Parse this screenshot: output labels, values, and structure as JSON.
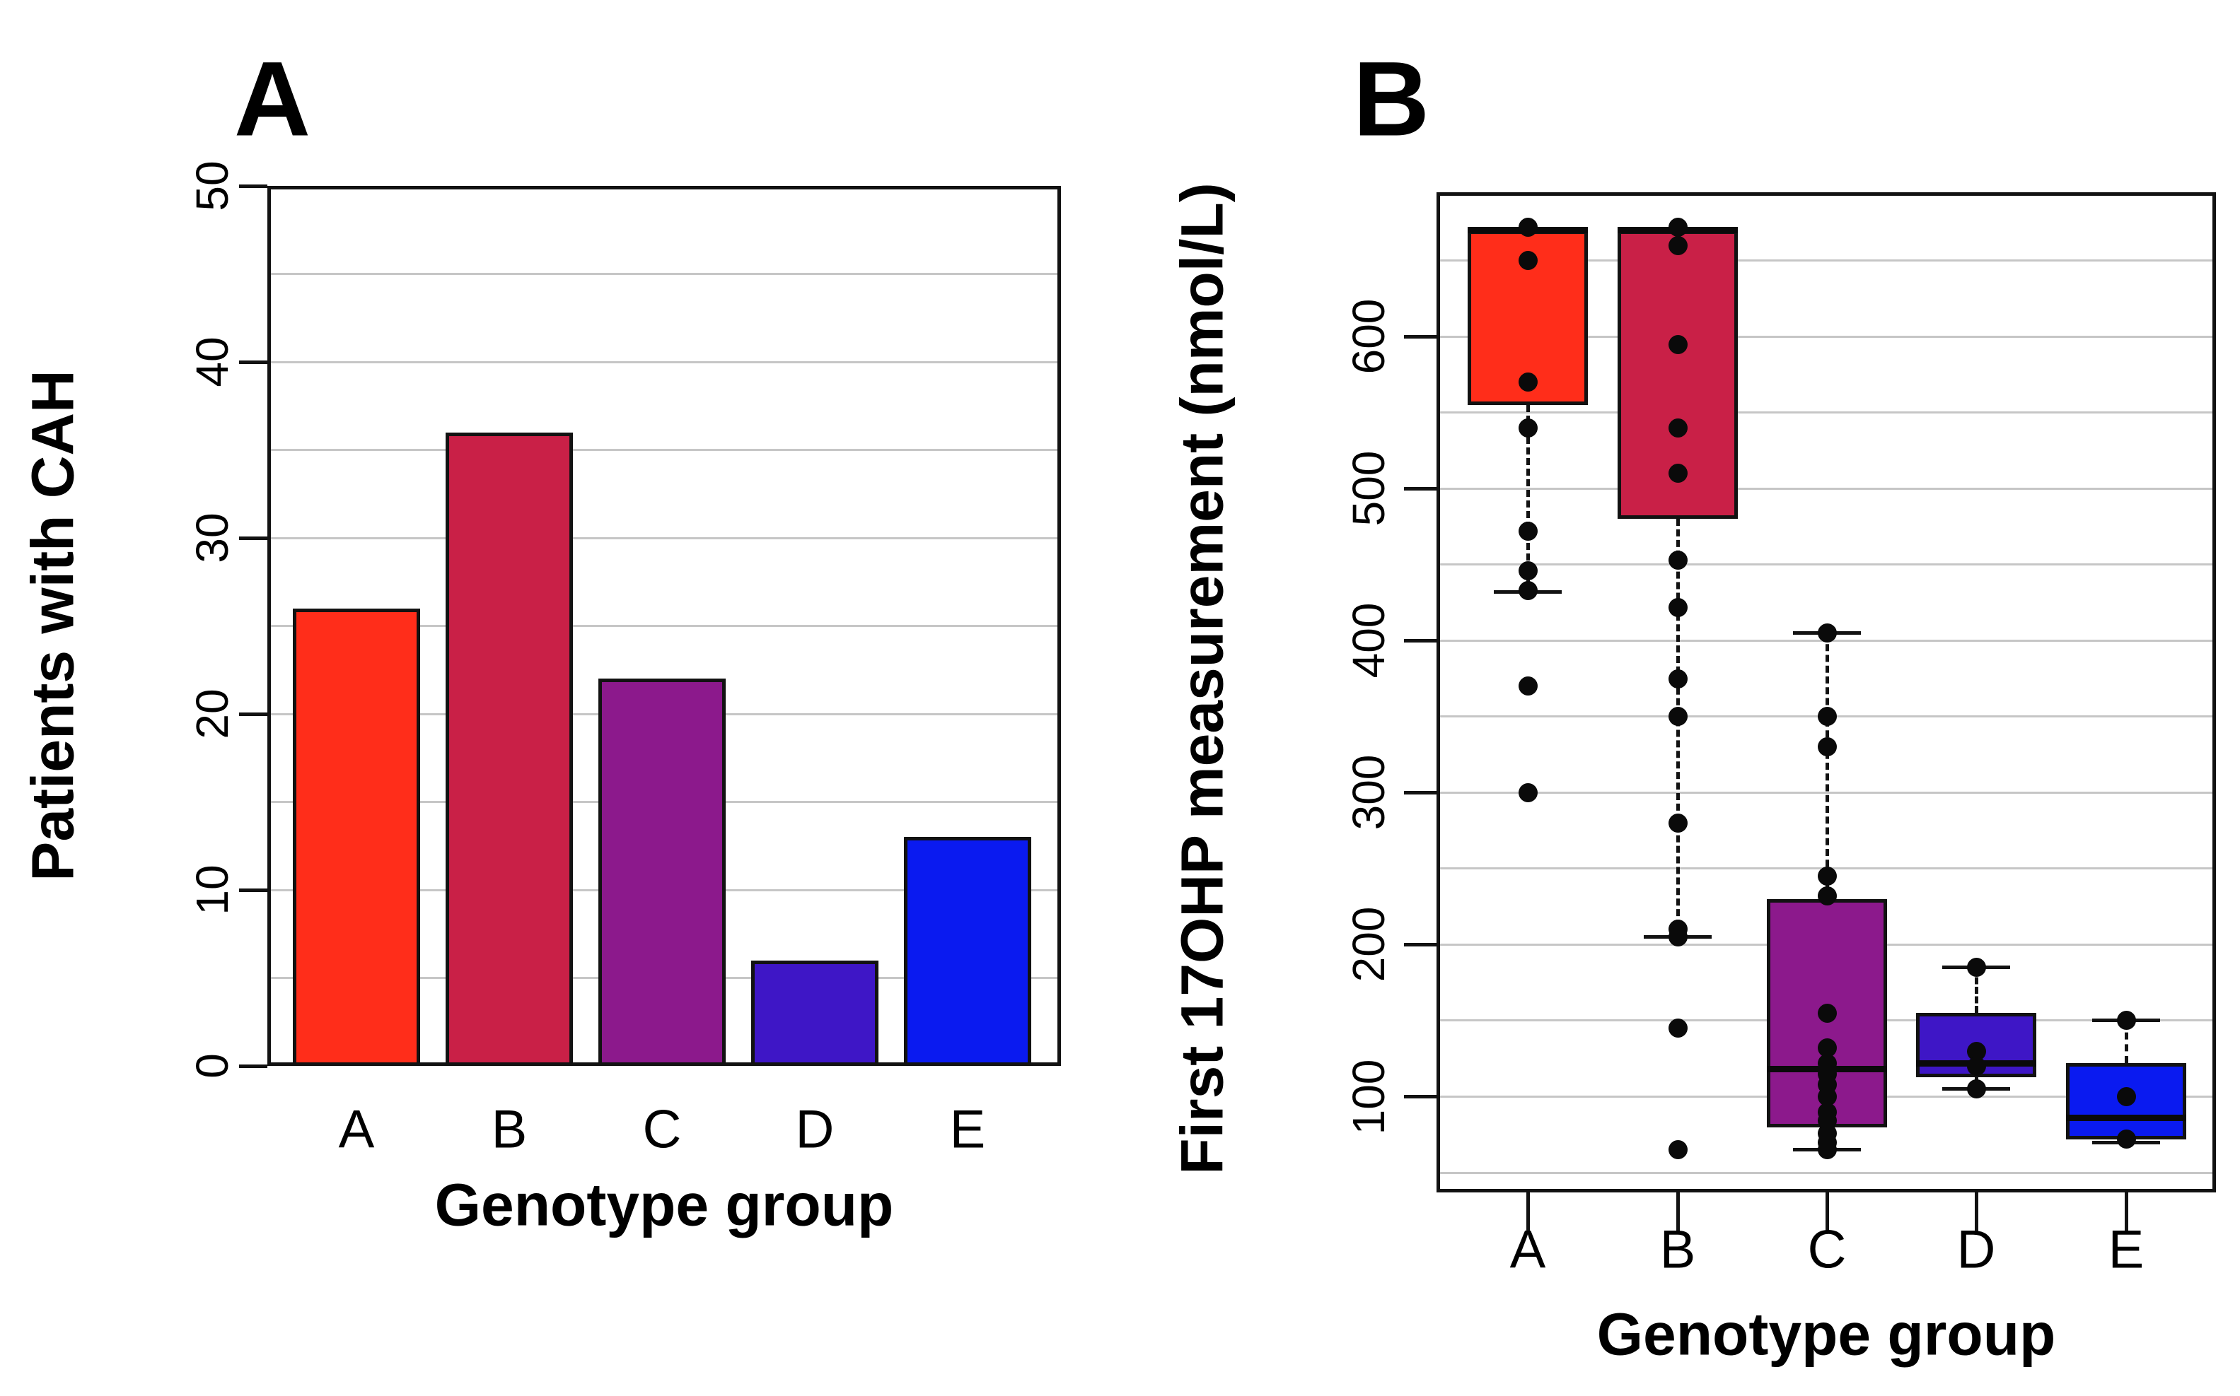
{
  "page": {
    "background": "#ffffff"
  },
  "chart_data": [
    {
      "type": "bar",
      "panel_label": "A",
      "categories": [
        "A",
        "B",
        "C",
        "D",
        "E"
      ],
      "values": [
        26,
        36,
        22,
        6,
        13
      ],
      "bar_colors": [
        "#FF2D1A",
        "#C92047",
        "#8C198C",
        "#3E16C6",
        "#0A1AF0"
      ],
      "xlabel": "Genotype group",
      "ylabel": "Patients with CAH",
      "ylim": [
        0,
        50
      ],
      "yticks": [
        0,
        10,
        20,
        30,
        40,
        50
      ],
      "grid": true,
      "grid_step": 5,
      "legend_position": "none"
    },
    {
      "type": "boxplot",
      "panel_label": "B",
      "categories": [
        "A",
        "B",
        "C",
        "D",
        "E"
      ],
      "xlabel": "Genotype group",
      "ylabel": "First 17OHP measurement (nmol/L)",
      "ylim": [
        37,
        695
      ],
      "yticks": [
        100,
        200,
        300,
        400,
        500,
        600
      ],
      "grid": true,
      "grid_step": 50,
      "box_colors": [
        "#FF2D1A",
        "#C92047",
        "#8C198C",
        "#3E16C6",
        "#0A1AF0"
      ],
      "point_color": "#0a0a0a",
      "series": [
        {
          "name": "A",
          "q1": 555,
          "median": 670,
          "q3": 670,
          "whisker_low": 432,
          "whisker_high": 670,
          "outliers": [
            370,
            300
          ],
          "points": [
            672,
            650,
            570,
            540,
            472,
            446,
            433,
            370,
            300
          ]
        },
        {
          "name": "B",
          "q1": 480,
          "median": 670,
          "q3": 670,
          "whisker_low": 205,
          "whisker_high": 670,
          "outliers": [
            145,
            65
          ],
          "points": [
            672,
            660,
            595,
            540,
            510,
            453,
            422,
            375,
            350,
            280,
            210,
            205,
            145,
            65
          ]
        },
        {
          "name": "C",
          "q1": 80,
          "median": 118,
          "q3": 230,
          "whisker_low": 65,
          "whisker_high": 405,
          "outliers": [],
          "points": [
            405,
            350,
            330,
            245,
            232,
            155,
            132,
            122,
            115,
            108,
            100,
            90,
            84,
            76,
            70,
            65
          ]
        },
        {
          "name": "D",
          "q1": 113,
          "median": 122,
          "q3": 155,
          "whisker_low": 105,
          "whisker_high": 185,
          "outliers": [],
          "points": [
            185,
            130,
            120,
            105
          ]
        },
        {
          "name": "E",
          "q1": 72,
          "median": 86,
          "q3": 122,
          "whisker_low": 70,
          "whisker_high": 150,
          "outliers": [],
          "points": [
            150,
            100,
            72
          ]
        }
      ]
    }
  ]
}
